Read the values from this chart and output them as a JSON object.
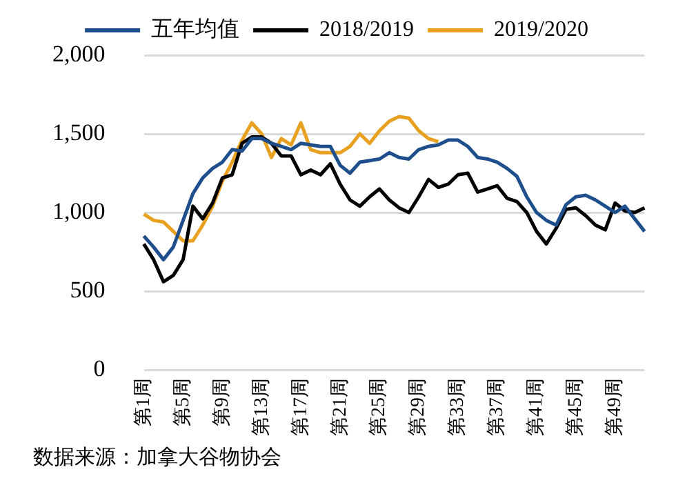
{
  "chart_data": {
    "type": "line",
    "categories": [
      "第1周",
      null,
      null,
      null,
      "第5周",
      null,
      null,
      null,
      "第9周",
      null,
      null,
      null,
      "第13周",
      null,
      null,
      null,
      "第17周",
      null,
      null,
      null,
      "第21周",
      null,
      null,
      null,
      "第25周",
      null,
      null,
      null,
      "第29周",
      null,
      null,
      null,
      "第33周",
      null,
      null,
      null,
      "第37周",
      null,
      null,
      null,
      "第41周",
      null,
      null,
      null,
      "第45周",
      null,
      null,
      null,
      "第49周",
      null,
      null,
      null
    ],
    "series": [
      {
        "name": "五年均值",
        "color": "#1f4e8c",
        "values": [
          850,
          780,
          700,
          780,
          950,
          1120,
          1220,
          1280,
          1320,
          1400,
          1390,
          1470,
          1470,
          1440,
          1420,
          1400,
          1440,
          1430,
          1420,
          1420,
          1300,
          1250,
          1320,
          1330,
          1340,
          1380,
          1350,
          1340,
          1400,
          1420,
          1430,
          1460,
          1460,
          1420,
          1350,
          1340,
          1320,
          1280,
          1230,
          1100,
          1000,
          950,
          920,
          1050,
          1100,
          1110,
          1080,
          1040,
          1000,
          1040,
          960,
          880
        ]
      },
      {
        "name": "2018/2019",
        "color": "#000000",
        "values": [
          800,
          700,
          560,
          600,
          700,
          1040,
          960,
          1060,
          1220,
          1240,
          1440,
          1480,
          1480,
          1440,
          1360,
          1360,
          1240,
          1270,
          1240,
          1310,
          1180,
          1080,
          1040,
          1100,
          1150,
          1080,
          1030,
          1000,
          1100,
          1210,
          1160,
          1180,
          1240,
          1250,
          1130,
          1150,
          1170,
          1090,
          1070,
          1000,
          880,
          800,
          900,
          1020,
          1030,
          980,
          920,
          890,
          1060,
          1010,
          1000,
          1030
        ]
      },
      {
        "name": "2019/2020",
        "color": "#e8a020",
        "values": [
          990,
          950,
          940,
          880,
          820,
          820,
          920,
          1040,
          1200,
          1320,
          1460,
          1570,
          1500,
          1350,
          1470,
          1430,
          1570,
          1400,
          1380,
          1380,
          1380,
          1420,
          1500,
          1440,
          1520,
          1580,
          1610,
          1600,
          1520,
          1470,
          1450,
          null,
          null,
          null,
          null,
          null,
          null,
          null,
          null,
          null,
          null,
          null,
          null,
          null,
          null,
          null,
          null,
          null,
          null,
          null,
          null,
          null
        ]
      }
    ],
    "ylim": [
      0,
      2000
    ],
    "yticks": [
      0,
      500,
      {
        "value": 1000,
        "label": "1,000"
      },
      {
        "value": 1500,
        "label": "1,500"
      },
      {
        "value": 2000,
        "label": "2,000"
      }
    ],
    "grid": "y",
    "legend": "top",
    "marker": "none",
    "line_style": "solid",
    "annotations": [
      "数据来源：加拿大谷物协会"
    ]
  }
}
